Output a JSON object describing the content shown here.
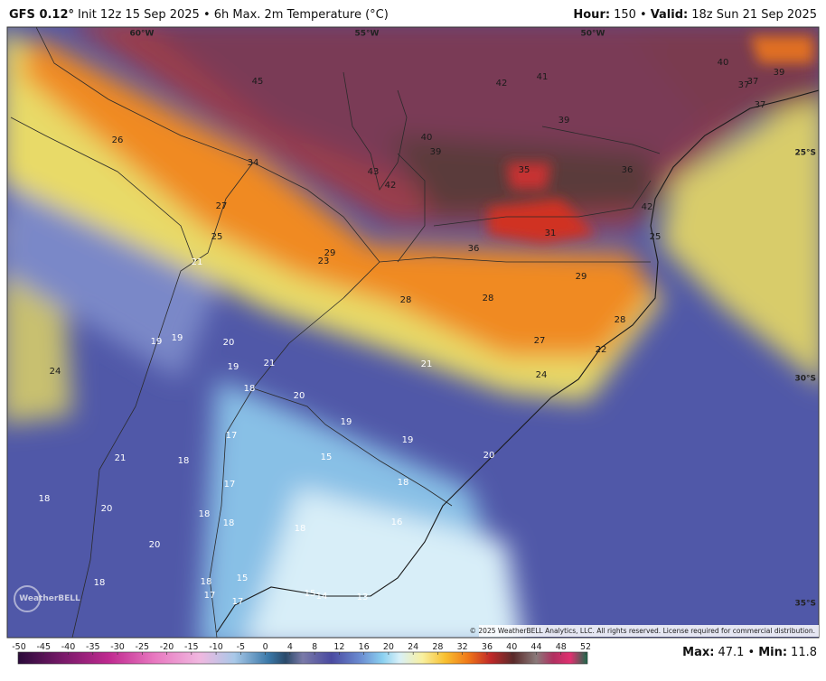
{
  "header": {
    "left": [
      {
        "text": "GFS 0.12°",
        "bold": true
      },
      {
        "text": "Init 12z 15 Sep 2025 • 6h Max. 2m Temperature (°C)",
        "bold": false
      }
    ],
    "right": [
      {
        "text": "Hour:",
        "bold": true
      },
      {
        "text": "150 •",
        "bold": false
      },
      {
        "text": "Valid:",
        "bold": true
      },
      {
        "text": "18z Sun 21 Sep 2025",
        "bold": false
      }
    ]
  },
  "longitudes": [
    "60°W",
    "55°W",
    "50°W"
  ],
  "latitudes": [
    "25°S",
    "30°S",
    "35°S"
  ],
  "map_labels": [
    45,
    26,
    34,
    27,
    25,
    21,
    29,
    23,
    43,
    42,
    40,
    39,
    42,
    41,
    39,
    35,
    36,
    42,
    40,
    39,
    37,
    37,
    37,
    25,
    31,
    29,
    36,
    28,
    28,
    28,
    27,
    22,
    24,
    21,
    19,
    19,
    20,
    19,
    21,
    18,
    20,
    24,
    19,
    19,
    17,
    21,
    18,
    15,
    20,
    18,
    18,
    20,
    17,
    18,
    18,
    18,
    16,
    20,
    18,
    15,
    18,
    17,
    17,
    15,
    14,
    13
  ],
  "logo": "WeatherBELL",
  "copyright": "© 2025 WeatherBELL Analytics, LLC. All rights reserved. License required for commercial distribution.",
  "colorbar": {
    "ticks": [
      -50,
      -45,
      -40,
      -35,
      -30,
      -25,
      -20,
      -15,
      -10,
      -5,
      0,
      4,
      8,
      12,
      16,
      20,
      24,
      28,
      32,
      36,
      40,
      44,
      48,
      52
    ]
  },
  "stats": [
    {
      "text": "Max:",
      "bold": true
    },
    {
      "text": "47.1 •",
      "bold": false
    },
    {
      "text": "Min:",
      "bold": true
    },
    {
      "text": "11.8",
      "bold": false
    }
  ]
}
